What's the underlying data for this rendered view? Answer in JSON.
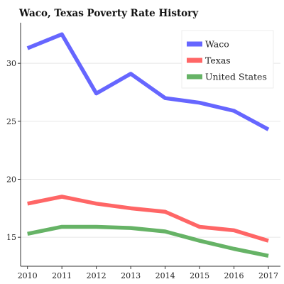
{
  "chart_data": {
    "type": "line",
    "title": "Waco, Texas Poverty Rate History",
    "xlabel": "",
    "ylabel": "",
    "x": [
      2010,
      2011,
      2012,
      2013,
      2014,
      2015,
      2016,
      2017
    ],
    "xlim": [
      2009.8,
      2017.35
    ],
    "ylim": [
      12.5,
      33.5
    ],
    "yticks": [
      15,
      20,
      25,
      30
    ],
    "grid": "horizontal",
    "legend_position": "top-right",
    "series": [
      {
        "name": "Waco",
        "color": "#6666ff",
        "values": [
          31.3,
          32.5,
          27.4,
          29.1,
          27.0,
          26.6,
          25.9,
          24.3
        ]
      },
      {
        "name": "Texas",
        "color": "#ff6666",
        "values": [
          17.9,
          18.5,
          17.9,
          17.5,
          17.2,
          15.9,
          15.6,
          14.7
        ]
      },
      {
        "name": "United States",
        "color": "#66b366",
        "values": [
          15.3,
          15.9,
          15.9,
          15.8,
          15.5,
          14.7,
          14.0,
          13.4
        ]
      }
    ]
  }
}
